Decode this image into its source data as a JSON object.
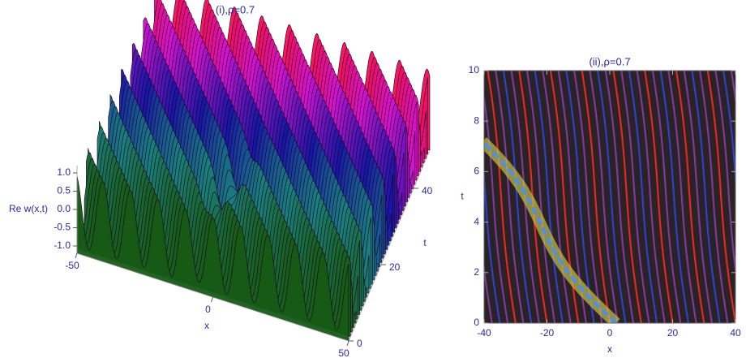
{
  "chart_data": [
    {
      "type": "surface3d",
      "title": "(i),ρ=0.7",
      "x_label": "x",
      "y_label": "t",
      "z_label": "Re w(x,t)",
      "xlim": [
        -50,
        50
      ],
      "xticks": [
        -50,
        0,
        50
      ],
      "ylim": [
        0,
        50
      ],
      "yticks": [
        0,
        20,
        40
      ],
      "zlim": [
        -1.2,
        1.2
      ],
      "zticks": [
        {
          "value": 1,
          "label": "1.0"
        },
        {
          "value": 0.5,
          "label": "0.5"
        },
        {
          "value": 0,
          "label": "0.0"
        },
        {
          "value": -0.5,
          "label": "-0.5"
        },
        {
          "value": -1,
          "label": "-1.0"
        }
      ]
    },
    {
      "type": "density",
      "title": "(ii),ρ=0.7",
      "x_label": "x",
      "y_label": "t",
      "xlim": [
        -40,
        40
      ],
      "xticks": [
        -40,
        -20,
        0,
        20,
        40
      ],
      "ylim": [
        0,
        10
      ],
      "yticks": [
        0,
        2,
        4,
        6,
        8,
        10
      ]
    }
  ]
}
